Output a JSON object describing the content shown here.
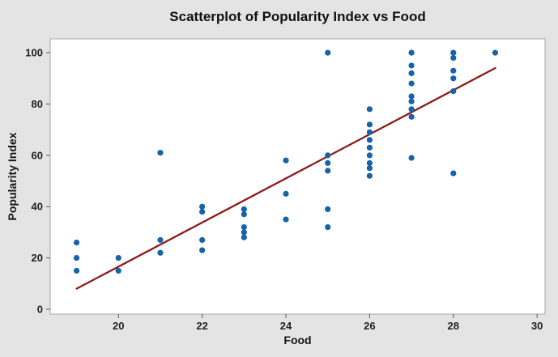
{
  "chart_data": {
    "type": "scatter",
    "title": "Scatterplot of Popularity Index vs Food",
    "xlabel": "Food",
    "ylabel": "Popularity Index",
    "xlim": [
      18.37,
      30.19
    ],
    "ylim": [
      -1.9,
      105.4
    ],
    "x_ticks": [
      20,
      22,
      24,
      26,
      28,
      30
    ],
    "y_ticks": [
      0,
      20,
      40,
      60,
      80,
      100
    ],
    "grid": false,
    "legend": "none",
    "marker_color": "#1663A8",
    "fit_line_color": "#8B1B1B",
    "fit_line": {
      "x": [
        19,
        29
      ],
      "y": [
        8,
        94
      ]
    },
    "points": [
      [
        19,
        26
      ],
      [
        19,
        20
      ],
      [
        19,
        15
      ],
      [
        20,
        20
      ],
      [
        20,
        15
      ],
      [
        21,
        61
      ],
      [
        21,
        27
      ],
      [
        21,
        22
      ],
      [
        22,
        40
      ],
      [
        22,
        38
      ],
      [
        22,
        27
      ],
      [
        22,
        23
      ],
      [
        23,
        39
      ],
      [
        23,
        37
      ],
      [
        23,
        32
      ],
      [
        23,
        30
      ],
      [
        23,
        28
      ],
      [
        24,
        58
      ],
      [
        24,
        45
      ],
      [
        24,
        35
      ],
      [
        25,
        100
      ],
      [
        25,
        60
      ],
      [
        25,
        57
      ],
      [
        25,
        54
      ],
      [
        25,
        39
      ],
      [
        25,
        32
      ],
      [
        26,
        78
      ],
      [
        26,
        72
      ],
      [
        26,
        69
      ],
      [
        26,
        66
      ],
      [
        26,
        63
      ],
      [
        26,
        60
      ],
      [
        26,
        57
      ],
      [
        26,
        55
      ],
      [
        26,
        52
      ],
      [
        27,
        100
      ],
      [
        27,
        95
      ],
      [
        27,
        92
      ],
      [
        27,
        88
      ],
      [
        27,
        83
      ],
      [
        27,
        81
      ],
      [
        27,
        78
      ],
      [
        27,
        75
      ],
      [
        27,
        59
      ],
      [
        28,
        100
      ],
      [
        28,
        98
      ],
      [
        28,
        93
      ],
      [
        28,
        90
      ],
      [
        28,
        85
      ],
      [
        28,
        53
      ],
      [
        29,
        100
      ]
    ]
  },
  "colors": {
    "window_background": "#E4E4E4",
    "plot_background": "#FFFFFF",
    "frame": "#A6A6A6",
    "tick": "#5A5A5A",
    "text": "#1A1A1A"
  }
}
